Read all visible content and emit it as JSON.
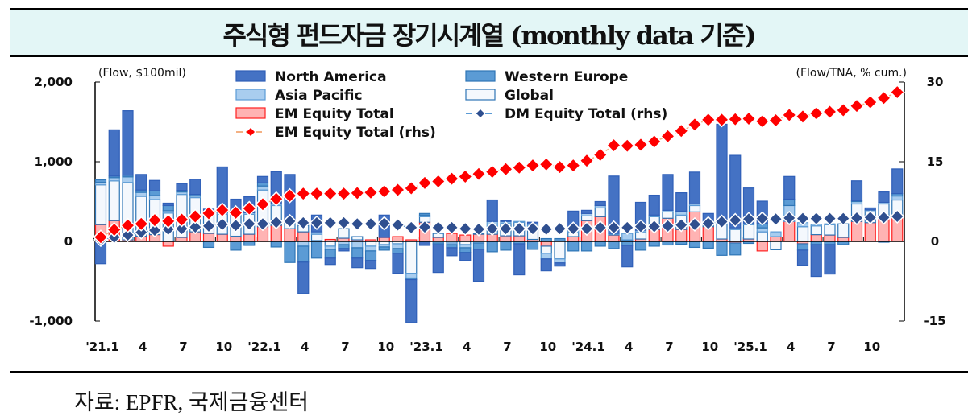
{
  "title": "주식형 펀드자금 장기시계열 (monthly data 기준)",
  "source": "자료: EPFR,  국제금융센터",
  "chart_data": {
    "type": "bar",
    "title": "주식형 펀드자금 장기시계열 (monthly data 기준)",
    "left_unit": "(Flow, $100mil)",
    "right_unit": "(Flow/TNA, % cum.)",
    "ylim": [
      -1000,
      2000
    ],
    "y_ticks": [
      2000,
      1000,
      0,
      -1000
    ],
    "y_tick_labels": [
      "2,000",
      "1,000",
      "0",
      "-1,000"
    ],
    "y2lim": [
      -15,
      30
    ],
    "y2_ticks": [
      30,
      15,
      0,
      -15
    ],
    "y2_tick_labels": [
      "30",
      "15",
      "0",
      "-15"
    ],
    "x_tick_labels": [
      "'21.1",
      "4",
      "7",
      "10",
      "'22.1",
      "4",
      "7",
      "10",
      "'23.1",
      "4",
      "7",
      "10",
      "'24.1",
      "4",
      "7",
      "10",
      "'25.1",
      "4",
      "7",
      "10"
    ],
    "months": 60,
    "legend_placement": "top",
    "colors": {
      "na": "#4472c4",
      "we": "#5b9bd5",
      "ap": "#a9cdef",
      "gl": "#f4f8fd",
      "em": "#ffb3b3",
      "em_line": "#ff0000",
      "dm_line": "#2f4f8f"
    },
    "series": [
      {
        "key": "na",
        "name": "North America",
        "type": "stacked-bar",
        "values": [
          -280,
          580,
          810,
          195,
          130,
          30,
          85,
          190,
          45,
          555,
          165,
          200,
          80,
          405,
          590,
          -395,
          210,
          -80,
          -30,
          -120,
          -100,
          280,
          -250,
          -540,
          -50,
          -350,
          -100,
          -100,
          -400,
          270,
          10,
          -390,
          25,
          -150,
          -40,
          240,
          40,
          50,
          720,
          -270,
          350,
          250,
          450,
          230,
          400,
          115,
          1220,
          910,
          440,
          275,
          0,
          285,
          -190,
          -400,
          -370,
          0,
          250,
          25,
          130,
          310
        ]
      },
      {
        "key": "we",
        "name": "Western Europe",
        "type": "stacked-bar",
        "values": [
          35,
          20,
          20,
          30,
          60,
          65,
          20,
          20,
          -75,
          20,
          -110,
          -50,
          40,
          -70,
          -265,
          -200,
          -210,
          -110,
          -50,
          -130,
          -120,
          -40,
          -60,
          -20,
          20,
          -20,
          -40,
          -60,
          -80,
          -130,
          -110,
          -30,
          -100,
          35,
          30,
          -120,
          -120,
          -60,
          -90,
          -50,
          -110,
          -60,
          -45,
          -35,
          -75,
          -85,
          -175,
          -150,
          -25,
          60,
          0,
          80,
          -80,
          -40,
          -40,
          -40,
          10,
          0,
          -10,
          30
        ]
      },
      {
        "key": "ap",
        "name": "Asia Pacific",
        "type": "stacked-bar",
        "values": [
          30,
          40,
          70,
          50,
          50,
          30,
          30,
          20,
          30,
          20,
          30,
          20,
          50,
          20,
          20,
          -60,
          30,
          -40,
          -40,
          -80,
          -60,
          -30,
          -60,
          -60,
          20,
          -20,
          -20,
          -40,
          -20,
          90,
          20,
          10,
          20,
          -70,
          -50,
          20,
          30,
          30,
          10,
          80,
          20,
          20,
          20,
          50,
          20,
          20,
          20,
          20,
          20,
          50,
          60,
          200,
          50,
          20,
          10,
          0,
          30,
          10,
          20,
          50
        ]
      },
      {
        "key": "gl",
        "name": "Global",
        "type": "stacked-bar",
        "values": [
          500,
          500,
          720,
          500,
          440,
          355,
          540,
          430,
          230,
          250,
          270,
          250,
          460,
          250,
          70,
          80,
          80,
          -60,
          120,
          40,
          -60,
          -40,
          -30,
          -400,
          70,
          50,
          -20,
          -40,
          10,
          70,
          160,
          170,
          170,
          -90,
          -220,
          60,
          60,
          110,
          10,
          10,
          90,
          160,
          80,
          180,
          80,
          30,
          200,
          150,
          180,
          120,
          -105,
          0,
          185,
          110,
          130,
          170,
          220,
          150,
          180,
          220
        ]
      },
      {
        "key": "em",
        "name": "EM Equity Total",
        "type": "stacked-bar",
        "values": [
          210,
          260,
          20,
          65,
          85,
          -60,
          50,
          120,
          100,
          90,
          65,
          90,
          185,
          200,
          160,
          120,
          10,
          25,
          40,
          20,
          20,
          50,
          60,
          20,
          240,
          50,
          100,
          80,
          90,
          90,
          70,
          70,
          25,
          -60,
          5,
          60,
          260,
          310,
          80,
          10,
          30,
          150,
          290,
          150,
          370,
          185,
          30,
          -20,
          30,
          -120,
          60,
          250,
          -30,
          85,
          80,
          50,
          250,
          235,
          290,
          300
        ]
      },
      {
        "key": "em_line",
        "name": "EM Equity Total (rhs)",
        "type": "line",
        "axis": "right",
        "values": [
          0.8,
          2.2,
          3.0,
          3.3,
          4.0,
          3.8,
          4.1,
          4.7,
          5.3,
          5.9,
          5.4,
          6.2,
          7.0,
          8.0,
          8.6,
          9.0,
          9.0,
          9.0,
          9.0,
          9.1,
          9.2,
          9.4,
          9.7,
          10.0,
          11.0,
          11.3,
          11.8,
          12.2,
          12.7,
          13.1,
          13.6,
          13.9,
          14.3,
          14.5,
          14.0,
          14.3,
          15.2,
          16.3,
          18.1,
          18.0,
          18.2,
          18.8,
          19.8,
          20.8,
          22.0,
          22.9,
          22.9,
          23.0,
          23.1,
          22.6,
          22.8,
          23.8,
          23.5,
          24.1,
          24.4,
          24.7,
          25.5,
          26.2,
          27.0,
          28.1
        ]
      },
      {
        "key": "dm_line",
        "name": "DM Equity Total (rhs)",
        "type": "line",
        "axis": "right",
        "values": [
          0.3,
          0.8,
          1.2,
          1.7,
          2.1,
          2.3,
          2.4,
          2.7,
          2.9,
          3.2,
          3.0,
          3.3,
          3.3,
          3.6,
          3.8,
          3.5,
          3.5,
          3.5,
          3.5,
          3.3,
          3.3,
          3.4,
          3.1,
          2.6,
          2.7,
          2.6,
          2.6,
          2.4,
          2.3,
          2.4,
          2.4,
          2.4,
          2.4,
          2.3,
          2.4,
          2.4,
          2.4,
          2.6,
          2.6,
          2.6,
          2.8,
          2.8,
          2.9,
          3.1,
          3.2,
          3.4,
          3.7,
          4.0,
          4.2,
          4.3,
          4.2,
          4.4,
          4.3,
          4.3,
          4.3,
          4.3,
          4.4,
          4.5,
          4.5,
          4.7
        ]
      }
    ]
  }
}
